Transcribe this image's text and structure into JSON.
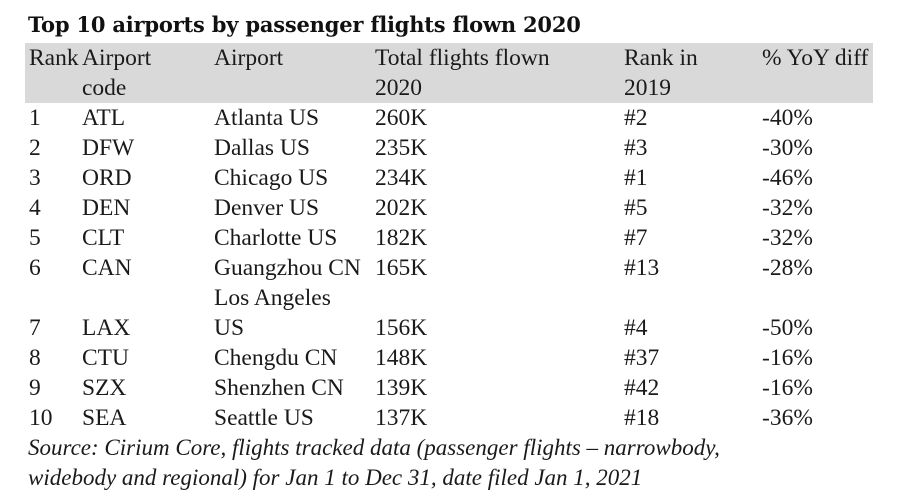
{
  "title": "Top 10 airports by passenger flights flown 2020",
  "columns": {
    "rank": "Rank",
    "code": [
      "Airport",
      "code"
    ],
    "airport": "Airport",
    "flights": [
      "Total flights flown",
      "2020"
    ],
    "rank2019": [
      "Rank in",
      "2019"
    ],
    "yoy": "% YoY diff"
  },
  "rows": [
    {
      "rank": "1",
      "code": "ATL",
      "airport": "Atlanta US",
      "flights": "260K",
      "rank2019": "#2",
      "yoy": "-40%"
    },
    {
      "rank": "2",
      "code": "DFW",
      "airport": "Dallas US",
      "flights": "235K",
      "rank2019": "#3",
      "yoy": "-30%"
    },
    {
      "rank": "3",
      "code": "ORD",
      "airport": "Chicago US",
      "flights": "234K",
      "rank2019": "#1",
      "yoy": "-46%"
    },
    {
      "rank": "4",
      "code": "DEN",
      "airport": "Denver US",
      "flights": "202K",
      "rank2019": "#5",
      "yoy": "-32%"
    },
    {
      "rank": "5",
      "code": "CLT",
      "airport": "Charlotte US",
      "flights": "182K",
      "rank2019": "#7",
      "yoy": "-32%"
    },
    {
      "rank": "6",
      "code": "CAN",
      "airport": "Guangzhou CN",
      "flights": "165K",
      "rank2019": "#13",
      "yoy": "-28%"
    },
    {
      "rank": "7",
      "code": "LAX",
      "airport": [
        "Los Angeles",
        "US"
      ],
      "flights": "156K",
      "rank2019": "#4",
      "yoy": "-50%"
    },
    {
      "rank": "8",
      "code": "CTU",
      "airport": "Chengdu CN",
      "flights": "148K",
      "rank2019": "#37",
      "yoy": "-16%"
    },
    {
      "rank": "9",
      "code": "SZX",
      "airport": "Shenzhen CN",
      "flights": "139K",
      "rank2019": "#42",
      "yoy": "-16%"
    },
    {
      "rank": "10",
      "code": "SEA",
      "airport": "Seattle US",
      "flights": "137K",
      "rank2019": "#18",
      "yoy": "-36%"
    }
  ],
  "source": [
    "Source: Cirium Core, flights tracked data (passenger flights – narrowbody,",
    "widebody and regional) for Jan 1 to Dec 31, date filed Jan 1, 2021"
  ]
}
